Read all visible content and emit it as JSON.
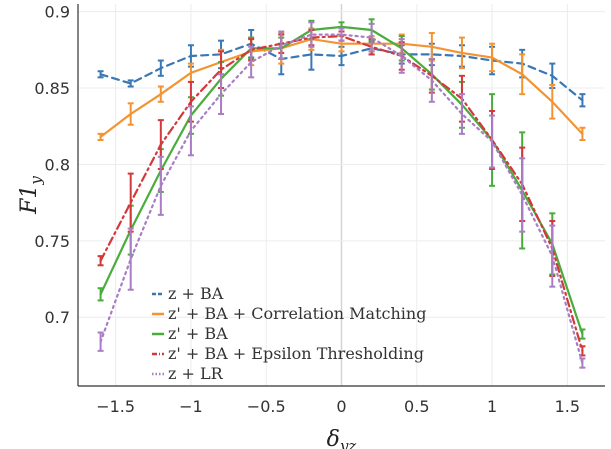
{
  "chart_data": {
    "type": "line",
    "xlabel": "δ_yz",
    "ylabel": "F1_y",
    "xlim": [
      -1.75,
      1.75
    ],
    "ylim": [
      0.655,
      0.905
    ],
    "x_ticks": [
      "−1.5",
      "−1",
      "−0.5",
      "0",
      "0.5",
      "1",
      "1.5"
    ],
    "y_ticks": [
      "0.7",
      "0.75",
      "0.8",
      "0.85",
      "0.9"
    ],
    "grid": true,
    "legend_position": "bottom-left",
    "x": [
      -1.6,
      -1.4,
      -1.2,
      -1.0,
      -0.8,
      -0.6,
      -0.4,
      -0.2,
      0.0,
      0.2,
      0.4,
      0.6,
      0.8,
      1.0,
      1.2,
      1.4,
      1.6
    ],
    "series": [
      {
        "name": "z + BA",
        "color": "#3a78b5",
        "dash": "dashed",
        "values": [
          0.859,
          0.853,
          0.863,
          0.871,
          0.872,
          0.879,
          0.869,
          0.872,
          0.871,
          0.876,
          0.872,
          0.872,
          0.871,
          0.868,
          0.866,
          0.858,
          0.842
        ],
        "errors": [
          0.002,
          0.002,
          0.005,
          0.007,
          0.009,
          0.009,
          0.01,
          0.01,
          0.006,
          0.004,
          0.006,
          0.007,
          0.007,
          0.009,
          0.009,
          0.008,
          0.004
        ]
      },
      {
        "name": "z' + BA + Correlation Matching",
        "color": "#f39432",
        "dash": "solid",
        "values": [
          0.818,
          0.833,
          0.846,
          0.86,
          0.867,
          0.874,
          0.876,
          0.882,
          0.879,
          0.879,
          0.879,
          0.877,
          0.873,
          0.87,
          0.859,
          0.841,
          0.82
        ],
        "errors": [
          0.002,
          0.007,
          0.005,
          0.006,
          0.008,
          0.009,
          0.01,
          0.007,
          0.005,
          0.005,
          0.006,
          0.009,
          0.01,
          0.009,
          0.013,
          0.011,
          0.004
        ]
      },
      {
        "name": "z' + BA",
        "color": "#4aac3c",
        "dash": "solid",
        "values": [
          0.715,
          0.757,
          0.796,
          0.832,
          0.856,
          0.876,
          0.876,
          0.888,
          0.89,
          0.888,
          0.876,
          0.859,
          0.839,
          0.816,
          0.783,
          0.748,
          0.689
        ],
        "errors": [
          0.004,
          0.016,
          0.014,
          0.012,
          0.011,
          0.007,
          0.007,
          0.006,
          0.003,
          0.007,
          0.008,
          0.01,
          0.015,
          0.03,
          0.038,
          0.02,
          0.003
        ]
      },
      {
        "name": "z' + BA + Epsilon Thresholding",
        "color": "#d3383a",
        "dash": "dashdot",
        "values": [
          0.737,
          0.775,
          0.813,
          0.841,
          0.862,
          0.875,
          0.879,
          0.883,
          0.884,
          0.877,
          0.871,
          0.858,
          0.843,
          0.816,
          0.787,
          0.745,
          0.678
        ],
        "errors": [
          0.003,
          0.019,
          0.016,
          0.013,
          0.012,
          0.007,
          0.006,
          0.005,
          0.003,
          0.005,
          0.009,
          0.011,
          0.015,
          0.019,
          0.024,
          0.018,
          0.003
        ]
      },
      {
        "name": "z + LR",
        "color": "#a87dc3",
        "dash": "dotted",
        "values": [
          0.684,
          0.738,
          0.786,
          0.822,
          0.846,
          0.867,
          0.878,
          0.885,
          0.885,
          0.883,
          0.871,
          0.855,
          0.833,
          0.815,
          0.78,
          0.74,
          0.67
        ],
        "errors": [
          0.006,
          0.02,
          0.019,
          0.016,
          0.013,
          0.01,
          0.009,
          0.008,
          0.004,
          0.009,
          0.011,
          0.014,
          0.013,
          0.017,
          0.024,
          0.02,
          0.003
        ]
      }
    ]
  }
}
